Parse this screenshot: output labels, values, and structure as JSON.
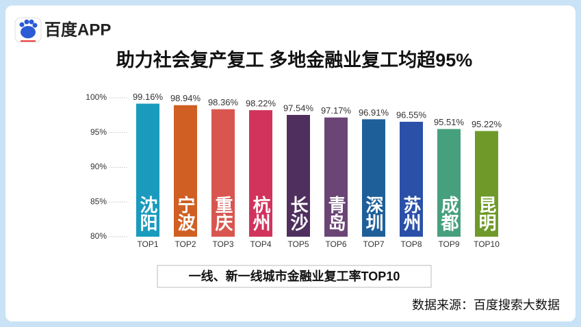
{
  "header": {
    "app_name": "百度APP"
  },
  "chart_data": {
    "type": "bar",
    "title": "助力社会复产复工 多地金融业复工均超95%",
    "subtitle": "一线、新一线城市金融业复工率TOP10",
    "source": "数据来源：百度搜索大数据",
    "categories": [
      "TOP1",
      "TOP2",
      "TOP3",
      "TOP4",
      "TOP5",
      "TOP6",
      "TOP7",
      "TOP8",
      "TOP9",
      "TOP10"
    ],
    "bar_labels": [
      "沈阳",
      "宁波",
      "重庆",
      "杭州",
      "长沙",
      "青岛",
      "深圳",
      "苏州",
      "成都",
      "昆明"
    ],
    "values": [
      99.16,
      98.94,
      98.36,
      98.22,
      97.54,
      97.17,
      96.91,
      96.55,
      95.51,
      95.22
    ],
    "value_labels": [
      "99.16%",
      "98.94%",
      "98.36%",
      "98.22%",
      "97.54%",
      "97.17%",
      "96.91%",
      "96.55%",
      "95.51%",
      "95.22%"
    ],
    "colors": [
      "#1a9bbd",
      "#cf5f23",
      "#d8564f",
      "#d1335c",
      "#4f2f5e",
      "#6b4576",
      "#1e5f9a",
      "#2a50a8",
      "#46a07e",
      "#6f9a2a"
    ],
    "ylim": [
      80,
      100
    ],
    "yticks": [
      {
        "value": 80,
        "label": "80%"
      },
      {
        "value": 85,
        "label": "85%"
      },
      {
        "value": 90,
        "label": "90%"
      },
      {
        "value": 95,
        "label": "95%"
      },
      {
        "value": 100,
        "label": "100%"
      }
    ],
    "grid": true
  }
}
